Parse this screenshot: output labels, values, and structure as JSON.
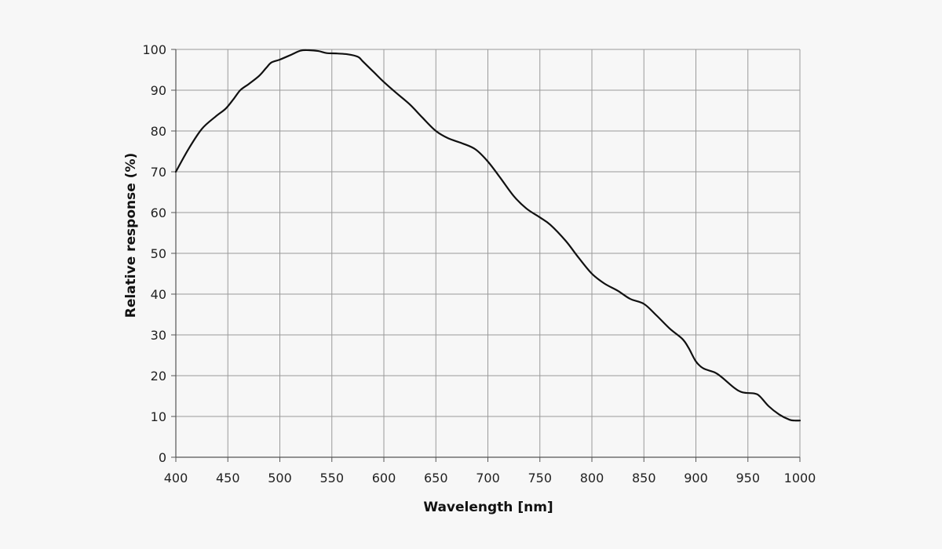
{
  "chart_data": {
    "type": "line",
    "title": "",
    "xlabel": "Wavelength [nm]",
    "ylabel": "Relative response  (%)",
    "xlim": [
      400,
      1000
    ],
    "ylim": [
      0,
      100
    ],
    "xticks": [
      400,
      450,
      500,
      550,
      600,
      650,
      700,
      750,
      800,
      850,
      900,
      950,
      1000
    ],
    "yticks": [
      0,
      10,
      20,
      30,
      40,
      50,
      60,
      70,
      80,
      90,
      100
    ],
    "grid": true,
    "legend": "none",
    "colors": {
      "line": "#111111",
      "grid": "#9a9a9a",
      "axis": "#555555",
      "background": "#f7f7f7"
    },
    "series": [
      {
        "x": [
          400,
          412,
          425,
          438,
          448,
          456,
          462,
          470,
          480,
          487,
          492,
          500,
          510,
          520,
          528,
          537,
          545,
          555,
          565,
          575,
          580,
          590,
          600,
          612,
          625,
          637,
          650,
          662,
          675,
          688,
          700,
          712,
          725,
          737,
          750,
          760,
          775,
          787,
          800,
          812,
          825,
          837,
          850,
          862,
          875,
          887,
          893,
          900,
          907,
          918,
          925,
          937,
          945,
          957,
          962,
          970,
          980,
          990,
          995,
          1000
        ],
        "y": [
          70,
          75.5,
          80.5,
          83.5,
          85.5,
          88,
          90,
          91.5,
          93.5,
          95.5,
          96.8,
          97.5,
          98.6,
          99.7,
          99.8,
          99.6,
          99.1,
          99,
          98.8,
          98.2,
          97,
          94.5,
          92,
          89.3,
          86.5,
          83.3,
          80,
          78.2,
          77,
          75.5,
          72.5,
          68.5,
          64,
          61,
          58.8,
          57,
          53,
          49,
          45,
          42.6,
          40.8,
          38.8,
          37.6,
          34.8,
          31.5,
          29,
          26.8,
          23.5,
          21.8,
          20.8,
          19.6,
          17,
          15.9,
          15.6,
          14.8,
          12.5,
          10.5,
          9.2,
          9,
          9
        ]
      }
    ]
  }
}
